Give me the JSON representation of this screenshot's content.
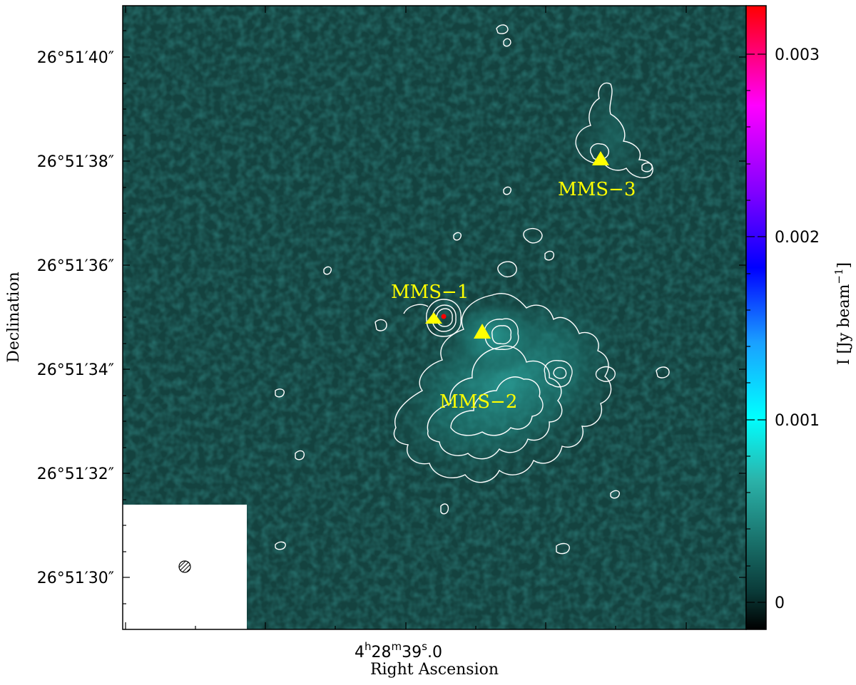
{
  "figure": {
    "xlabel": "Right Ascension",
    "ylabel": "Declination",
    "x_tick": {
      "hours": "4",
      "minutes": "28",
      "seconds": "39",
      "frac": "0"
    },
    "y_ticks": [
      "26°51′40″",
      "26°51′38″",
      "26°51′36″",
      "26°51′34″",
      "26°51′32″",
      "26°51′30″"
    ],
    "sources": [
      {
        "name": "MMS−1"
      },
      {
        "name": "MMS−2"
      },
      {
        "name": "MMS−3"
      }
    ]
  },
  "colorbar": {
    "label": "I [Jy beam",
    "label_exponent": "−1",
    "label_close": "]",
    "ticks": [
      "0.003",
      "0.002",
      "0.001",
      "0"
    ],
    "range": [
      -0.0002,
      0.0032
    ],
    "colormap": [
      "#000000",
      "#0a3a38",
      "#19706a",
      "#2bb3aa",
      "#00ffff",
      "#1aa0ff",
      "#0000ff",
      "#8000ff",
      "#ff00ff",
      "#ff0000"
    ]
  },
  "colors": {
    "background_map": "#14423f",
    "contour": "#ffffff",
    "marker": "#ffff00",
    "peak": "#ff0000"
  }
}
